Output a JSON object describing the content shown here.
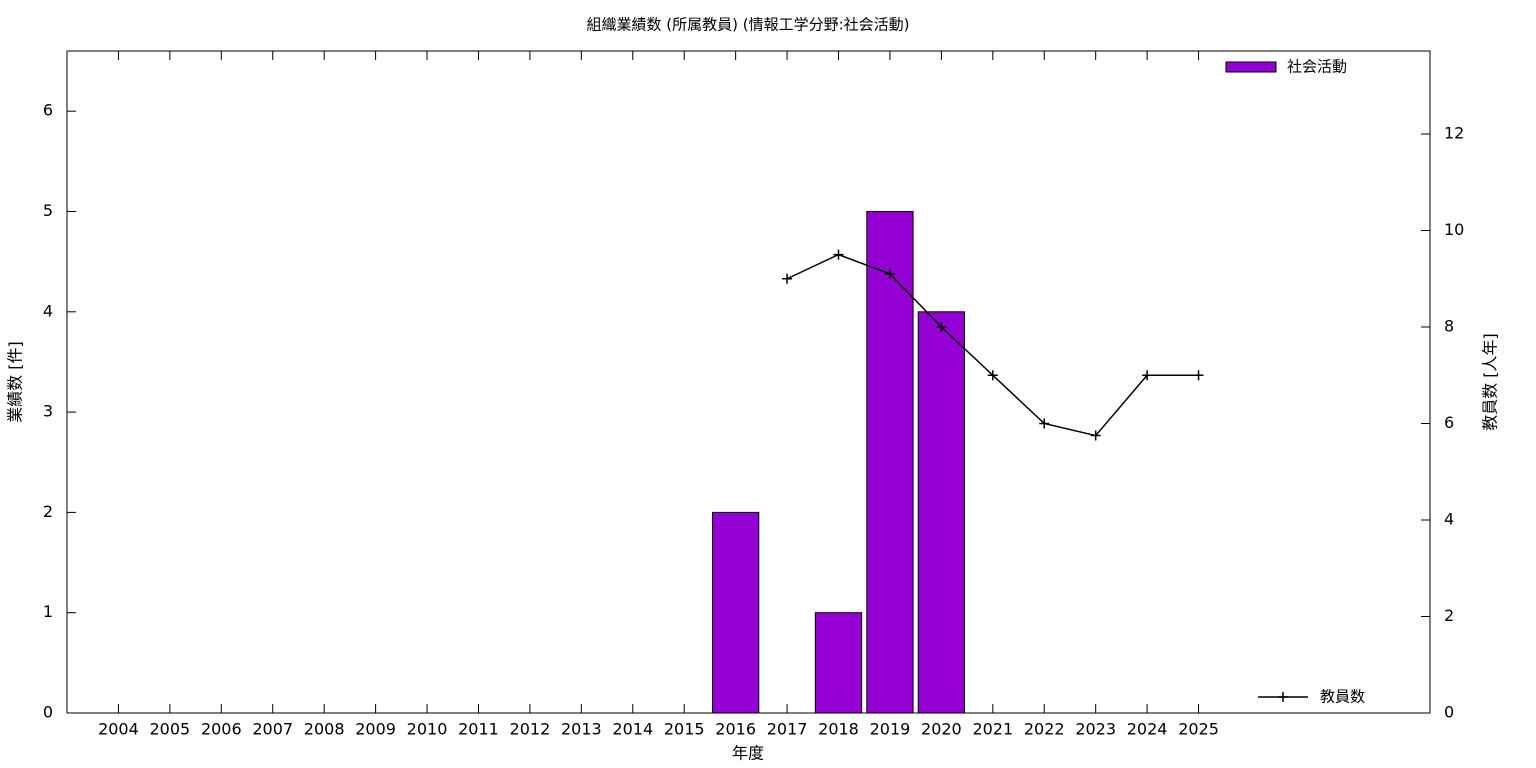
{
  "chart_data": {
    "type": "bar",
    "title": "組織業績数 (所属教員) (情報工学分野:社会活動)",
    "x_label": "年度",
    "y_label": "業績数 [件]",
    "y2_label": "教員数 [人年]",
    "x": [
      2004,
      2005,
      2006,
      2007,
      2008,
      2009,
      2010,
      2011,
      2012,
      2013,
      2014,
      2015,
      2016,
      2017,
      2018,
      2019,
      2020,
      2021,
      2022,
      2023,
      2024,
      2025
    ],
    "xlim": [
      2003,
      2029.5
    ],
    "xticks": [
      2004,
      2005,
      2006,
      2007,
      2008,
      2009,
      2010,
      2011,
      2012,
      2013,
      2014,
      2015,
      2016,
      2017,
      2018,
      2019,
      2020,
      2021,
      2022,
      2023,
      2024,
      2025
    ],
    "ylim": [
      0,
      6.6
    ],
    "yticks": [
      0,
      1,
      2,
      3,
      4,
      5,
      6
    ],
    "y2lim": [
      0,
      13.72
    ],
    "y2ticks": [
      0,
      2,
      4,
      6,
      8,
      10,
      12
    ],
    "series": [
      {
        "name": "社会活動",
        "type": "bar",
        "color": "#9400d3",
        "legend": "top-right",
        "values": [
          0,
          0,
          0,
          0,
          0,
          0,
          0,
          0,
          0,
          0,
          0,
          0,
          2,
          0,
          1,
          5,
          4,
          0,
          0,
          0,
          0,
          0
        ]
      },
      {
        "name": "教員数",
        "type": "line",
        "axis": "y2",
        "color": "#000000",
        "legend": "bottom-right",
        "values": [
          null,
          null,
          null,
          null,
          null,
          null,
          null,
          null,
          null,
          null,
          null,
          null,
          null,
          9,
          9.5,
          9.1,
          8,
          7,
          6,
          5.75,
          7,
          7
        ]
      }
    ]
  }
}
